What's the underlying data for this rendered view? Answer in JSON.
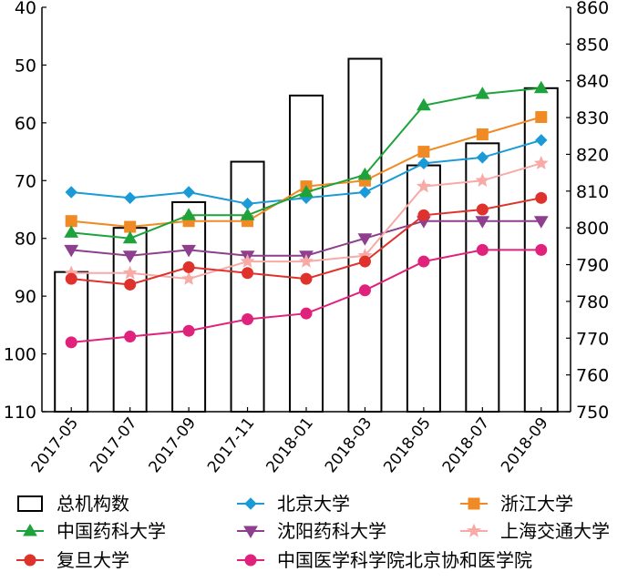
{
  "chart_data": {
    "type": "bar+line",
    "categories": [
      "2017-05",
      "2017-07",
      "2017-09",
      "2017-11",
      "2018-01",
      "2018-03",
      "2018-05",
      "2018-07",
      "2018-09"
    ],
    "left_axis": {
      "ticks": [
        "40",
        "50",
        "60",
        "70",
        "80",
        "90",
        "100",
        "110"
      ],
      "range": [
        40,
        110
      ],
      "inverted": true
    },
    "right_axis": {
      "ticks": [
        "860",
        "850",
        "840",
        "830",
        "820",
        "810",
        "800",
        "790",
        "780",
        "770",
        "760",
        "750"
      ],
      "range": [
        750,
        860
      ]
    },
    "bar_series": {
      "name": "总机构数",
      "axis": "right",
      "values": [
        788,
        800,
        807,
        818,
        836,
        846,
        817,
        823,
        838
      ]
    },
    "series": [
      {
        "name": "北京大学",
        "color": "#1a9ad6",
        "marker": "diamond",
        "values": [
          72,
          73,
          72,
          74,
          73,
          72,
          67,
          66,
          63
        ]
      },
      {
        "name": "浙江大学",
        "color": "#f08a24",
        "marker": "square",
        "values": [
          77,
          78,
          77,
          77,
          71,
          70,
          65,
          62,
          59
        ]
      },
      {
        "name": "中国药科大学",
        "color": "#1ea33c",
        "marker": "triangle-up",
        "values": [
          79,
          80,
          76,
          76,
          72,
          69,
          57,
          55,
          54
        ]
      },
      {
        "name": "沈阳药科大学",
        "color": "#8e3f8e",
        "marker": "triangle-down",
        "values": [
          82,
          83,
          82,
          83,
          83,
          80,
          77,
          77,
          77
        ]
      },
      {
        "name": "上海交通大学",
        "color": "#f7aaa6",
        "marker": "star",
        "values": [
          86,
          86,
          87,
          84,
          84,
          83,
          71,
          70,
          67
        ]
      },
      {
        "name": "复旦大学",
        "color": "#e0322c",
        "marker": "circle",
        "values": [
          87,
          88,
          85,
          86,
          87,
          84,
          76,
          75,
          73
        ]
      },
      {
        "name": "中国医学科学院北京协和医学院",
        "color": "#e0227c",
        "marker": "circle",
        "values": [
          98,
          97,
          96,
          94,
          93,
          89,
          84,
          82,
          82
        ]
      }
    ]
  }
}
